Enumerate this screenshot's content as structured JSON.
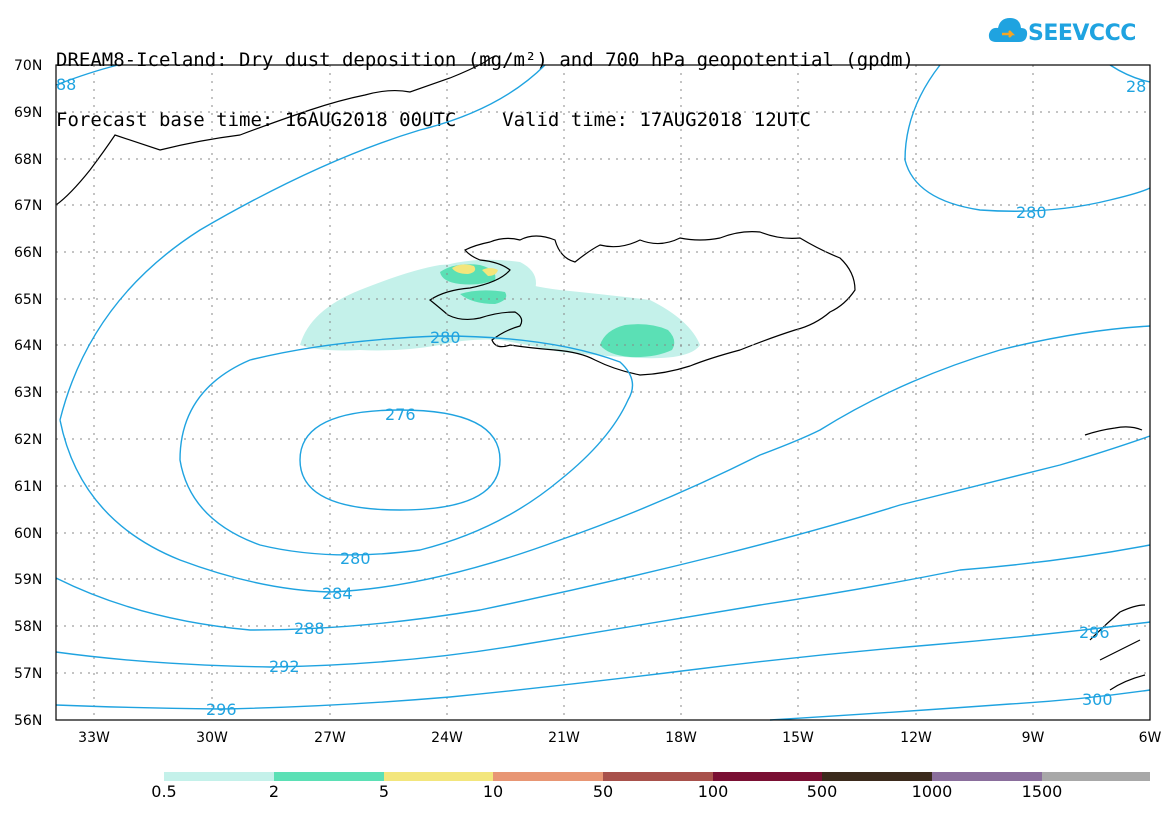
{
  "title": {
    "line1": "DREAM8-Iceland: Dry dust deposition (mg/m²) and 700 hPa geopotential (gpdm)",
    "line2_base_label": "Forecast base time: 16AUG2018 00UTC",
    "line2_valid_label": "Valid time: 17AUG2018 12UTC"
  },
  "logo": {
    "text": "SEEVCCC",
    "colors": {
      "cloud": "#1fa3e0",
      "arrow": "#f5a623"
    }
  },
  "map": {
    "lat_labels": [
      "70N",
      "69N",
      "68N",
      "67N",
      "66N",
      "65N",
      "64N",
      "63N",
      "62N",
      "61N",
      "60N",
      "59N",
      "58N",
      "57N",
      "56N"
    ],
    "lon_labels": [
      "33W",
      "30W",
      "27W",
      "24W",
      "21W",
      "18W",
      "15W",
      "12W",
      "9W",
      "6W"
    ],
    "contour_color": "#1fa3e0",
    "contour_labels": [
      "88",
      "28",
      "280",
      "280",
      "276",
      "280",
      "284",
      "288",
      "292",
      "296",
      "296",
      "300"
    ]
  },
  "colorbar": {
    "colors": [
      "#c4f1ea",
      "#5be0b5",
      "#f3e67c",
      "#e89674",
      "#a8514b",
      "#7a0f33",
      "#3b2a1c",
      "#8a6e9c",
      "#a8a8a8"
    ],
    "labels": [
      "0.5",
      "2",
      "5",
      "10",
      "50",
      "100",
      "500",
      "1000",
      "1500"
    ]
  }
}
